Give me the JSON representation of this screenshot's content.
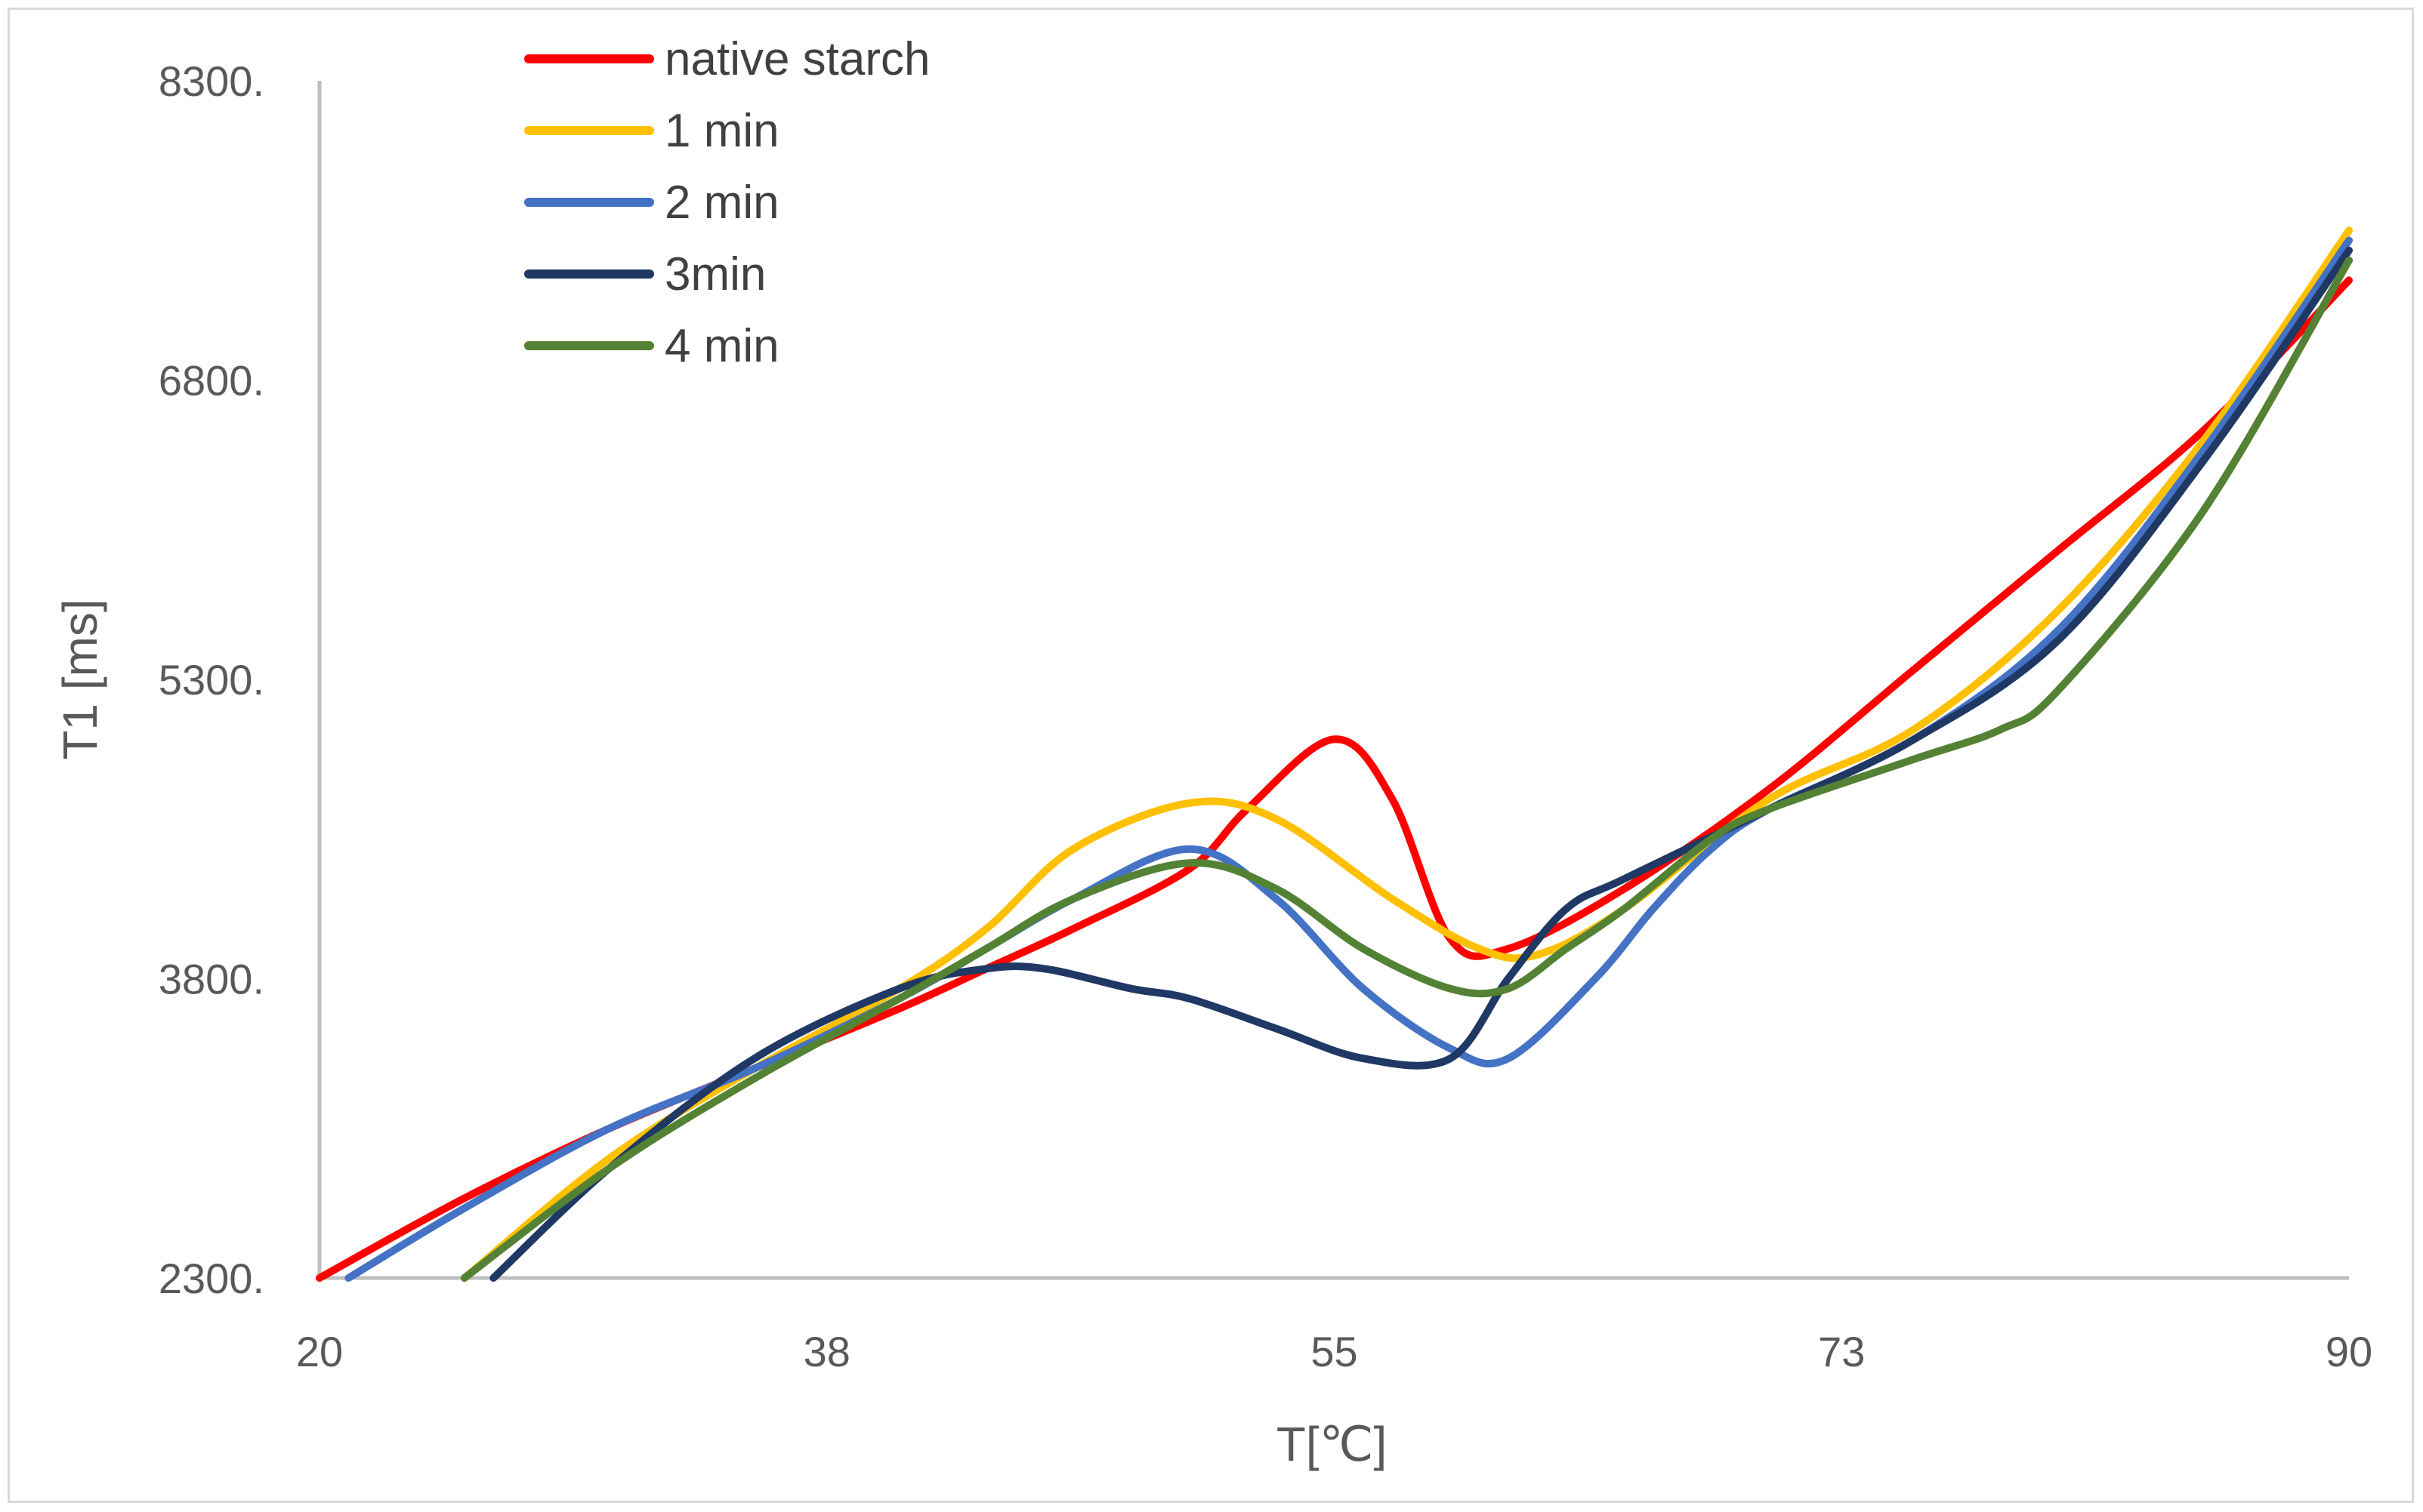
{
  "chart_data": {
    "type": "line",
    "title": "",
    "xlabel": "T[℃]",
    "ylabel": "T1 [ms]",
    "xlim": [
      20,
      90
    ],
    "ylim": [
      2300,
      8300
    ],
    "x_ticks": [
      "20",
      "38",
      "55",
      "73",
      "90"
    ],
    "y_ticks": [
      "2300.",
      "3800.",
      "5300.",
      "6800.",
      "8300."
    ],
    "grid": false,
    "legend": "top-left",
    "series": [
      {
        "name": "native starch",
        "color": "#ff0000",
        "x": [
          20,
          25,
          30,
          35,
          40,
          43,
          46,
          50,
          52,
          55,
          57,
          59,
          61,
          65,
          70,
          75,
          80,
          85,
          90
        ],
        "y": [
          2300,
          2700,
          3050,
          3350,
          3650,
          3850,
          4050,
          4350,
          4650,
          5000,
          4700,
          4000,
          3950,
          4250,
          4750,
          5350,
          5950,
          6550,
          7300
        ]
      },
      {
        "name": "1 min",
        "color": "#ffc000",
        "x": [
          25,
          30,
          35,
          40,
          43,
          46,
          50,
          53,
          57,
          60,
          62,
          65,
          70,
          75,
          80,
          85,
          90
        ],
        "y": [
          2300,
          2900,
          3350,
          3750,
          4050,
          4450,
          4680,
          4600,
          4200,
          3950,
          3920,
          4150,
          4700,
          5050,
          5650,
          6500,
          7550
        ]
      },
      {
        "name": "2 min",
        "color": "#4472c4",
        "x": [
          21,
          25,
          30,
          35,
          40,
          43,
          46,
          50,
          53,
          56,
          59,
          61,
          64,
          66,
          68,
          70,
          75,
          80,
          85,
          90
        ],
        "y": [
          2300,
          2650,
          3050,
          3350,
          3700,
          3950,
          4200,
          4450,
          4200,
          3750,
          3450,
          3400,
          3800,
          4150,
          4450,
          4650,
          5000,
          5550,
          6450,
          7500
        ]
      },
      {
        "name": "3min",
        "color": "#1f3864",
        "x": [
          26,
          30,
          35,
          40,
          43,
          45,
          48,
          50,
          53,
          56,
          59,
          61,
          63,
          65,
          70,
          75,
          80,
          85,
          90
        ],
        "y": [
          2300,
          2850,
          3400,
          3750,
          3850,
          3850,
          3750,
          3700,
          3550,
          3400,
          3400,
          3800,
          4150,
          4300,
          4650,
          5000,
          5500,
          6400,
          7450
        ]
      },
      {
        "name": "4 min",
        "color": "#548235",
        "x": [
          25,
          30,
          35,
          40,
          43,
          46,
          50,
          53,
          56,
          59,
          61,
          63,
          65,
          68,
          70,
          75,
          78,
          80,
          85,
          90
        ],
        "y": [
          2300,
          2850,
          3300,
          3700,
          3950,
          4200,
          4380,
          4250,
          3950,
          3750,
          3750,
          3950,
          4150,
          4500,
          4650,
          4900,
          5050,
          5250,
          6150,
          7400
        ]
      }
    ]
  }
}
